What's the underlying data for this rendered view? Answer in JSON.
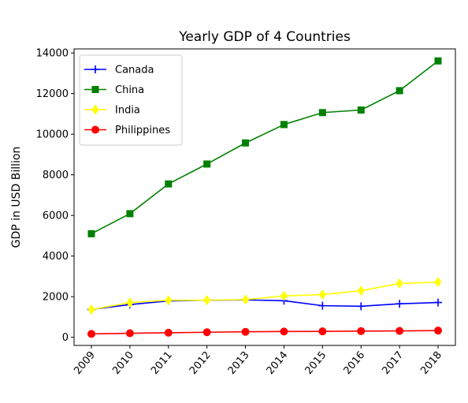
{
  "chart_data": {
    "type": "line",
    "title": "Yearly GDP of 4 Countries",
    "xlabel": "",
    "ylabel": "GDP in USD Billion",
    "x": [
      "2009",
      "2010",
      "2011",
      "2012",
      "2013",
      "2014",
      "2015",
      "2016",
      "2017",
      "2018"
    ],
    "ylim": [
      -400,
      14200
    ],
    "yticks": [
      0,
      2000,
      4000,
      6000,
      8000,
      10000,
      12000,
      14000
    ],
    "grid": false,
    "legend_position": "upper-left",
    "series": [
      {
        "name": "Canada",
        "color": "#0000ff",
        "marker": "plus",
        "values": [
          1371,
          1613,
          1789,
          1824,
          1843,
          1802,
          1556,
          1528,
          1650,
          1713
        ]
      },
      {
        "name": "China",
        "color": "#008000",
        "marker": "square",
        "values": [
          5100,
          6087,
          7552,
          8532,
          9570,
          10476,
          11064,
          11191,
          12143,
          13608
        ]
      },
      {
        "name": "India",
        "color": "#ffff00",
        "marker": "diamond",
        "values": [
          1365,
          1708,
          1823,
          1828,
          1857,
          2039,
          2103,
          2295,
          2651,
          2719
        ]
      },
      {
        "name": "Philippines",
        "color": "#ff0000",
        "marker": "circle",
        "values": [
          168,
          200,
          224,
          250,
          272,
          285,
          293,
          305,
          314,
          331
        ]
      }
    ]
  }
}
